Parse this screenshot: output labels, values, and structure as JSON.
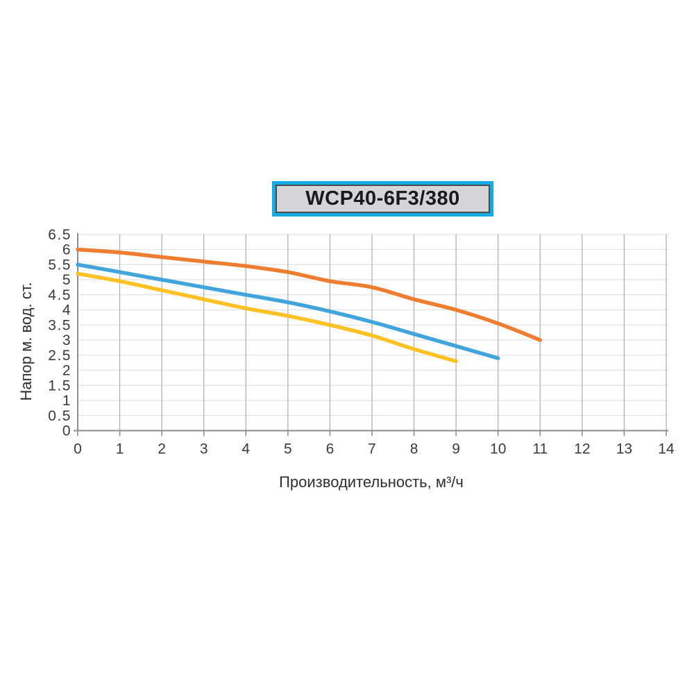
{
  "title_box": {
    "label": "WCP40-6F3/380",
    "border_color": "#14AAE2",
    "inner_border_color": "#4A4A4A",
    "fill_color": "#D5D5D7"
  },
  "chart_data": {
    "type": "line",
    "title": "WCP40-6F3/380",
    "xlabel": "Производительность, м³/ч",
    "ylabel": "Напор м. вод. ст.",
    "xlim": [
      0,
      14
    ],
    "ylim": [
      0,
      6.5
    ],
    "grid": true,
    "legend": "none",
    "x_ticks": {
      "values": [
        0,
        1,
        2,
        3,
        4,
        5,
        6,
        7,
        8,
        9,
        10,
        11,
        12,
        13,
        14
      ],
      "labels": [
        "0",
        "1",
        "2",
        "3",
        "4",
        "5",
        "6",
        "7",
        "8",
        "9",
        "10",
        "11",
        "12",
        "13",
        "14"
      ]
    },
    "y_ticks": {
      "values": [
        0,
        0.5,
        1,
        1.5,
        2,
        2.5,
        3,
        3.5,
        4,
        4.5,
        5,
        5.5,
        6,
        6.5
      ],
      "labels": [
        "0",
        "0.5",
        "1",
        "1.5",
        "2",
        "2.5",
        "3",
        "3.5",
        "4",
        "4.5",
        "5",
        "5.5",
        "6",
        "6.5"
      ]
    },
    "series": [
      {
        "name": "curve-orange",
        "color": "#ED7D31",
        "x": [
          0,
          1,
          2,
          3,
          4,
          5,
          6,
          7,
          8,
          9,
          10,
          11
        ],
        "y": [
          6.0,
          5.9,
          5.75,
          5.6,
          5.45,
          5.25,
          4.95,
          4.75,
          4.35,
          4.0,
          3.55,
          3.0
        ]
      },
      {
        "name": "curve-blue",
        "color": "#41A5DB",
        "x": [
          0,
          1,
          2,
          3,
          4,
          5,
          6,
          7,
          8,
          9,
          10
        ],
        "y": [
          5.5,
          5.25,
          5.0,
          4.75,
          4.5,
          4.25,
          3.95,
          3.6,
          3.2,
          2.8,
          2.4
        ]
      },
      {
        "name": "curve-yellow",
        "color": "#FFC226",
        "x": [
          0,
          1,
          2,
          3,
          4,
          5,
          6,
          7,
          8,
          9
        ],
        "y": [
          5.2,
          4.95,
          4.65,
          4.35,
          4.05,
          3.8,
          3.5,
          3.15,
          2.7,
          2.3
        ]
      }
    ],
    "styles": {
      "grid_vertical_color": "#ABABAB",
      "grid_horizontal_color": "#E2E2E2",
      "axis_color": "#8C8C8C",
      "tick_label_color": "#3A3A3A",
      "series_stroke_width": 5.5
    }
  }
}
